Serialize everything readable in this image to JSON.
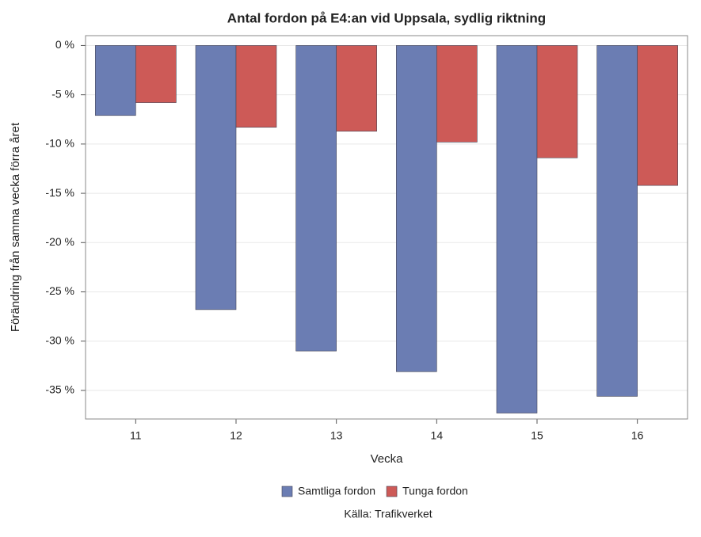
{
  "chart_data": {
    "type": "bar",
    "title": "Antal fordon på E4:an vid Uppsala, sydlig riktning",
    "x_label": "Vecka",
    "y_label": "Förändring från samma vecka förra året",
    "footnote": "Källa: Trafikverket",
    "categories": [
      "11",
      "12",
      "13",
      "14",
      "15",
      "16"
    ],
    "series": [
      {
        "name": "Samtliga fordon",
        "color": "#6b7db3",
        "values": [
          -7.1,
          -26.8,
          -31.0,
          -33.1,
          -37.3,
          -35.6
        ]
      },
      {
        "name": "Tunga fordon",
        "color": "#cd5a57",
        "values": [
          -5.8,
          -8.3,
          -8.7,
          -9.8,
          -11.4,
          -14.2
        ]
      }
    ],
    "ylim": [
      -37.9,
      1
    ],
    "yticks": [
      {
        "value": 0,
        "label": "0 %"
      },
      {
        "value": -5,
        "label": "-5 %"
      },
      {
        "value": -10,
        "label": "-10 %"
      },
      {
        "value": -15,
        "label": "-15 %"
      },
      {
        "value": -20,
        "label": "-20 %"
      },
      {
        "value": -25,
        "label": "-25 %"
      },
      {
        "value": -30,
        "label": "-30 %"
      },
      {
        "value": -35,
        "label": "-35 %"
      }
    ],
    "grid": true
  }
}
